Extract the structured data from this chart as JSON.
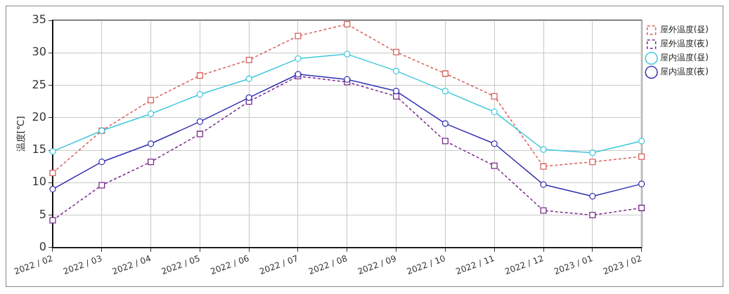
{
  "chart_data": {
    "type": "line",
    "ylabel": "温度[℃]",
    "categories": [
      "2022 / 02",
      "2022 / 03",
      "2022 / 04",
      "2022 / 05",
      "2022 / 06",
      "2022 / 07",
      "2022 / 08",
      "2022 / 09",
      "2022 / 10",
      "2022 / 11",
      "2022 / 12",
      "2023 / 01",
      "2023 / 02"
    ],
    "series": [
      {
        "name": "屋外温度(昼)",
        "color": "#d9605a",
        "marker": "square",
        "line_style": "dashed",
        "values": [
          11.5,
          18,
          22.7,
          26.5,
          28.9,
          32.6,
          34.4,
          30.1,
          26.8,
          23.3,
          12.5,
          13.2,
          14
        ]
      },
      {
        "name": "屋外温度(夜)",
        "color": "#7a2a8a",
        "marker": "square",
        "line_style": "dashed",
        "values": [
          4.2,
          9.6,
          13.2,
          17.5,
          22.5,
          26.4,
          25.5,
          23.3,
          16.4,
          12.6,
          5.7,
          5,
          6.1
        ]
      },
      {
        "name": "屋内温度(昼)",
        "color": "#3ec8dc",
        "marker": "circle",
        "line_style": "solid",
        "values": [
          14.8,
          18,
          20.6,
          23.6,
          26,
          29.1,
          29.8,
          27.2,
          24.1,
          20.9,
          15.1,
          14.6,
          16.4
        ]
      },
      {
        "name": "屋内温度(夜)",
        "color": "#3030b0",
        "marker": "circle",
        "line_style": "solid",
        "values": [
          9,
          13.2,
          16,
          19.4,
          23.1,
          26.7,
          25.9,
          24.1,
          19.1,
          16,
          9.7,
          7.9,
          9.8
        ]
      }
    ],
    "ylim": [
      0,
      35
    ],
    "yticks": [
      0,
      5,
      10,
      15,
      20,
      25,
      30,
      35
    ],
    "grid": true,
    "legend": "top right"
  }
}
